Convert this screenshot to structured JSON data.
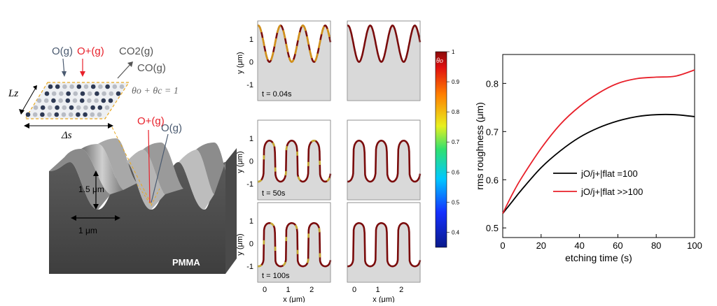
{
  "schematic": {
    "o_neutral": "O(g)",
    "o_ion": "O+(g)",
    "co2": "CO2(g)",
    "co": "CO(g)",
    "lz_label": "Lz",
    "ds_label": "Δs",
    "theta_eq": "θo + θc = 1",
    "height_label": "1.5 μm",
    "width_label": "1 μm",
    "material_label": "PMMA"
  },
  "profiles": {
    "ylabel": "y (μm)",
    "xlabel": "x (μm)",
    "yticks": [
      "1",
      "0",
      "-1"
    ],
    "xticks": [
      "0",
      "1",
      "2"
    ],
    "time_labels": [
      "t = 0.04s",
      "t = 50s",
      "t = 100s"
    ],
    "colorbar_label": "θo",
    "colorbar_ticks": [
      "1",
      "0.9",
      "0.8",
      "0.7",
      "0.6",
      "0.5",
      "0.4"
    ]
  },
  "chart_data": {
    "type": "line",
    "xlabel": "etching time (s)",
    "ylabel": "rms roughness (μm)",
    "xlim": [
      0,
      100
    ],
    "ylim": [
      0.48,
      0.86
    ],
    "xticks": [
      0,
      20,
      40,
      60,
      80,
      100
    ],
    "yticks": [
      0.5,
      0.6,
      0.7,
      0.8
    ],
    "legend_position": "lower-right",
    "series": [
      {
        "name": "jO/j+|flat =100",
        "color": "#000000",
        "x": [
          0,
          5,
          10,
          20,
          30,
          40,
          50,
          60,
          70,
          80,
          90,
          100
        ],
        "y": [
          0.53,
          0.555,
          0.58,
          0.625,
          0.66,
          0.688,
          0.708,
          0.722,
          0.731,
          0.735,
          0.735,
          0.731
        ]
      },
      {
        "name": "jO/j+|flat >>100",
        "color": "#e8202a",
        "x": [
          0,
          5,
          10,
          20,
          30,
          40,
          50,
          60,
          70,
          80,
          90,
          100
        ],
        "y": [
          0.53,
          0.57,
          0.605,
          0.665,
          0.715,
          0.752,
          0.78,
          0.8,
          0.81,
          0.813,
          0.815,
          0.828
        ]
      }
    ]
  }
}
